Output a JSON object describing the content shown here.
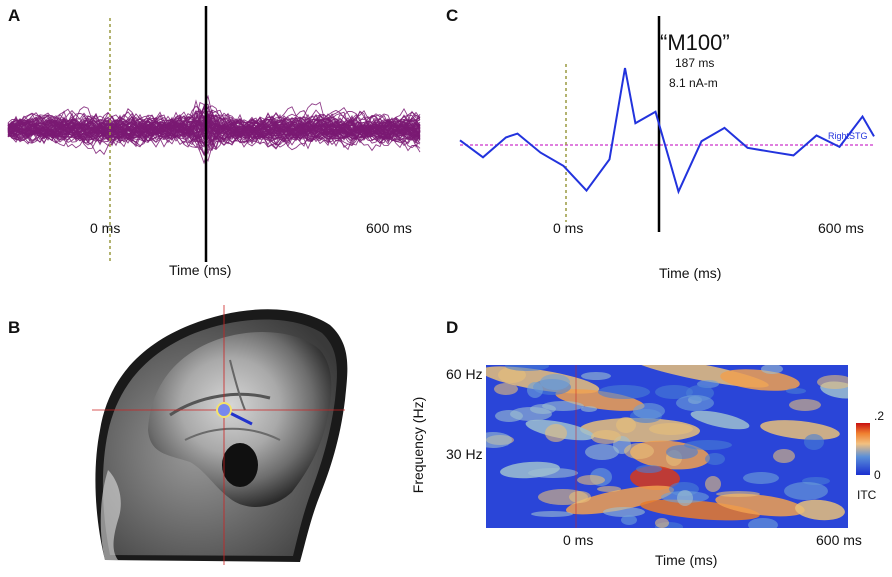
{
  "panels": {
    "A": {
      "letter": "A",
      "tick_left": "0 ms",
      "tick_right": "600 ms",
      "xlabel": "Time (ms)"
    },
    "B": {
      "letter": "B"
    },
    "C": {
      "letter": "C",
      "peak_label": "“M100”",
      "latency": "187 ms",
      "amplitude": "8.1 nA-m",
      "trace_label": "RightSTG",
      "tick_left": "0 ms",
      "tick_right": "600 ms",
      "xlabel": "Time (ms)"
    },
    "D": {
      "letter": "D",
      "ytick_top": "60 Hz",
      "ytick_mid": "30 Hz",
      "ylabel": "Frequency (Hz)",
      "tick_left": "0 ms",
      "tick_right": "600 ms",
      "xlabel": "Time (ms)",
      "cbar_max": ".2",
      "cbar_min": "0",
      "cbar_label": "ITC"
    }
  },
  "colors": {
    "trace_purple": "#7a1a73",
    "trace_blue": "#2233dd",
    "marker_olive": "#9a9a40",
    "guide_red": "#cc2222"
  },
  "chart_data": [
    {
      "type": "line",
      "panel": "C",
      "series": [
        {
          "name": "RightSTG",
          "x": [
            -100,
            -60,
            -20,
            0,
            40,
            80,
            120,
            160,
            187,
            205,
            240,
            280,
            320,
            360,
            400,
            440,
            480,
            520,
            560,
            600,
            620
          ],
          "values": [
            0.5,
            -1.3,
            0.8,
            1.2,
            -0.8,
            -2.2,
            -4.8,
            -1.5,
            8.1,
            2.3,
            3.5,
            -4.9,
            0.4,
            1.8,
            -0.3,
            -0.7,
            -1.1,
            1.0,
            -0.2,
            3.0,
            0.9
          ]
        }
      ],
      "annotations": [
        "“M100”",
        "187 ms",
        "8.1 nA-m"
      ]
    }
  ]
}
